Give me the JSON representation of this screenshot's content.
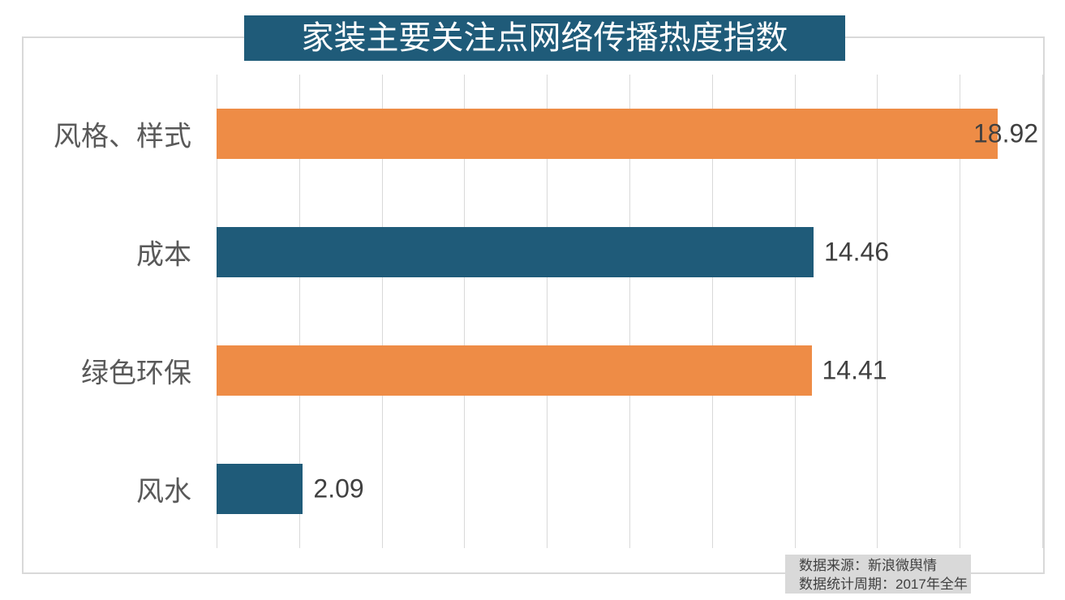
{
  "chart_data": {
    "type": "bar",
    "orientation": "horizontal",
    "title": "家装主要关注点网络传播热度指数",
    "categories": [
      "风格、样式",
      "成本",
      "绿色环保",
      "风水"
    ],
    "values": [
      18.92,
      14.46,
      14.41,
      2.09
    ],
    "data_labels": [
      "18.92",
      "14.46",
      "14.41",
      "2.09"
    ],
    "bar_colors": [
      "#EE8C46",
      "#1F5B79",
      "#EE8C46",
      "#1F5B79"
    ],
    "xlim": [
      0,
      20
    ],
    "gridline_interval": 2,
    "grid": "vertical",
    "legend": "none",
    "axis_tick_labels": "none"
  },
  "footnote": {
    "line1": "数据来源：新浪微舆情",
    "line2": "数据统计周期：2017年全年"
  },
  "colors": {
    "background": "#FFFFFF",
    "teal": "#1F5B79",
    "orange": "#EE8C46",
    "gridline": "#D9D9D9",
    "chart_border": "#D9D9D9",
    "category_label": "#595959",
    "value_label": "#404040",
    "title_bg": "#1F5B79",
    "title_text": "#FFFFFF",
    "footnote_bg": "#D9D9D9",
    "footnote_text": "#404040"
  }
}
